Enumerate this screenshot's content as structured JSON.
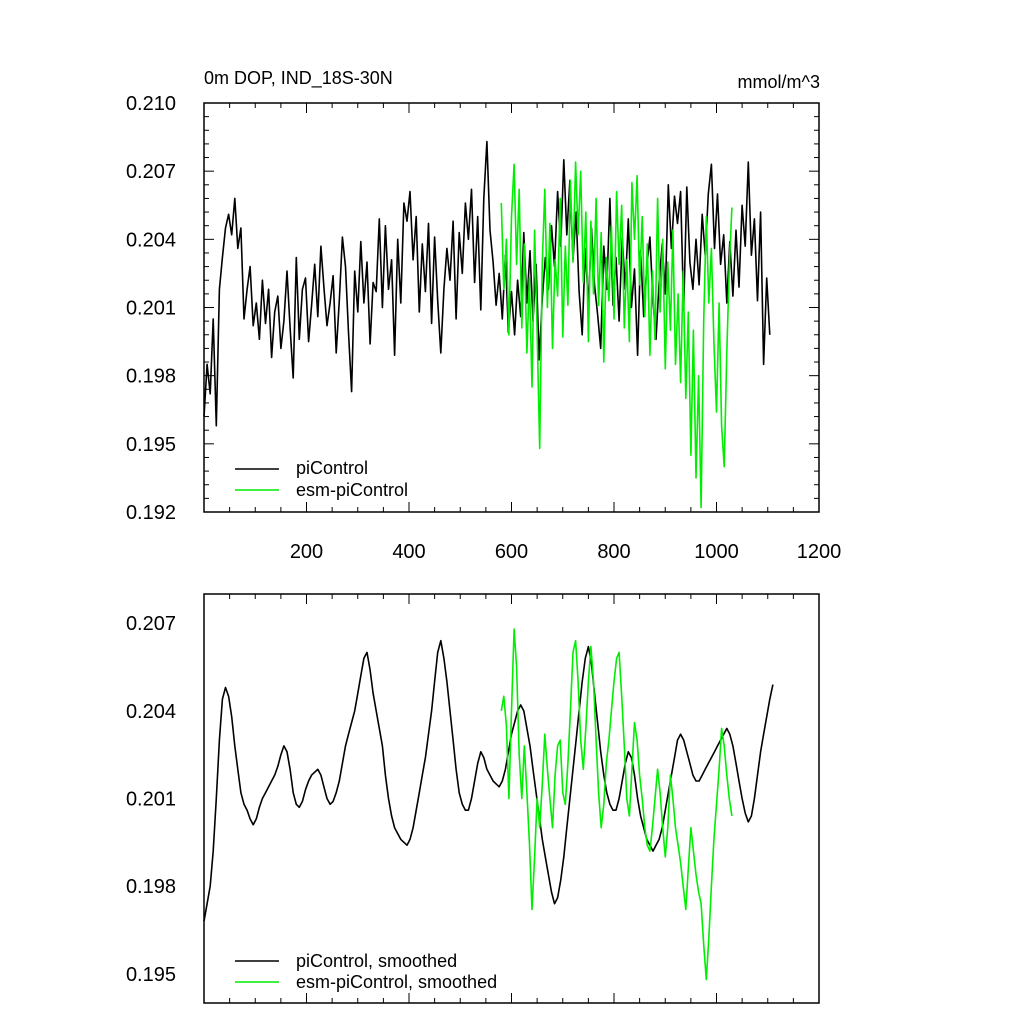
{
  "chart_data": [
    {
      "type": "line",
      "title_left": "0m DOP, IND_18S-30N",
      "title_right": "mmol/m^3",
      "xlim": [
        0,
        1200
      ],
      "ylim": [
        0.192,
        0.21
      ],
      "x_ticks": [
        200,
        400,
        600,
        800,
        1000,
        1200
      ],
      "x_tick_labels": [
        "200",
        "400",
        "600",
        "800",
        "1000",
        "1200"
      ],
      "y_ticks": [
        0.192,
        0.195,
        0.198,
        0.201,
        0.204,
        0.207,
        0.21
      ],
      "y_tick_labels": [
        "0.192",
        "0.195",
        "0.198",
        "0.201",
        "0.204",
        "0.207",
        "0.210"
      ],
      "legend": [
        {
          "label": "piControl",
          "color": "#000000"
        },
        {
          "label": "esm-piControl",
          "color": "#00ee00"
        }
      ],
      "series": [
        {
          "name": "piControl",
          "color": "#000000",
          "x_start": 0,
          "x_step": 6,
          "values": [
            0.1962,
            0.1985,
            0.1972,
            0.2005,
            0.1958,
            0.2018,
            0.2032,
            0.2045,
            0.2051,
            0.2042,
            0.2058,
            0.2036,
            0.2045,
            0.2005,
            0.2018,
            0.2028,
            0.2002,
            0.2012,
            0.1996,
            0.2022,
            0.2003,
            0.2018,
            0.1988,
            0.2008,
            0.2015,
            0.1992,
            0.2004,
            0.2026,
            0.2001,
            0.1979,
            0.2032,
            0.1996,
            0.2018,
            0.2023,
            0.1995,
            0.2011,
            0.2029,
            0.2006,
            0.2037,
            0.2019,
            0.2002,
            0.2012,
            0.2024,
            0.199,
            0.2013,
            0.2041,
            0.2028,
            0.1999,
            0.1973,
            0.2026,
            0.2008,
            0.2039,
            0.2012,
            0.203,
            0.1994,
            0.2021,
            0.2017,
            0.2049,
            0.201,
            0.2046,
            0.2018,
            0.2031,
            0.1989,
            0.204,
            0.2012,
            0.2056,
            0.2048,
            0.2061,
            0.2031,
            0.205,
            0.2008,
            0.2038,
            0.2017,
            0.2047,
            0.2003,
            0.2041,
            0.2013,
            0.199,
            0.2018,
            0.2036,
            0.2022,
            0.2048,
            0.2005,
            0.2043,
            0.2025,
            0.2056,
            0.204,
            0.2062,
            0.2021,
            0.205,
            0.2009,
            0.2058,
            0.2083,
            0.2044,
            0.203,
            0.2011,
            0.2025,
            0.2005,
            0.2033,
            0.1999,
            0.2017,
            0.1998,
            0.2022,
            0.2006,
            0.2043,
            0.2012,
            0.2035,
            0.2004,
            0.2029,
            0.1987,
            0.2014,
            0.2032,
            0.2018,
            0.2046,
            0.2028,
            0.2061,
            0.2037,
            0.2075,
            0.2042,
            0.2066,
            0.2031,
            0.2052,
            0.2017,
            0.1998,
            0.2036,
            0.2011,
            0.2045,
            0.202,
            0.2007,
            0.1992,
            0.2037,
            0.2018,
            0.2058,
            0.2011,
            0.2032,
            0.2004,
            0.2041,
            0.2018,
            0.2049,
            0.201,
            0.2027,
            0.1989,
            0.2035,
            0.2006,
            0.2028,
            0.2041,
            0.2013,
            0.1996,
            0.2021,
            0.2038,
            0.2016,
            0.2064,
            0.2036,
            0.2059,
            0.2047,
            0.2061,
            0.2009,
            0.2063,
            0.203,
            0.2018,
            0.204,
            0.202,
            0.2051,
            0.2033,
            0.206,
            0.2073,
            0.2036,
            0.206,
            0.2029,
            0.2042,
            0.2012,
            0.2039,
            0.2015,
            0.2044,
            0.2019,
            0.2055,
            0.2037,
            0.2074,
            0.2033,
            0.2049,
            0.2013,
            0.2052,
            0.1985,
            0.2023,
            0.1998
          ],
          "smoothed": [
            0.1968,
            0.1974,
            0.198,
            0.1992,
            0.201,
            0.203,
            0.2044,
            0.2048,
            0.2045,
            0.2038,
            0.2028,
            0.202,
            0.2012,
            0.2008,
            0.2006,
            0.2003,
            0.2001,
            0.2003,
            0.2007,
            0.201,
            0.2012,
            0.2014,
            0.2016,
            0.2018,
            0.2021,
            0.2025,
            0.2028,
            0.2026,
            0.202,
            0.2012,
            0.2008,
            0.2007,
            0.2009,
            0.2013,
            0.2016,
            0.2018,
            0.2019,
            0.202,
            0.2018,
            0.2014,
            0.201,
            0.2008,
            0.2009,
            0.2012,
            0.2016,
            0.2022,
            0.2028,
            0.2032,
            0.2036,
            0.204,
            0.2046,
            0.2052,
            0.2058,
            0.206,
            0.2054,
            0.2046,
            0.204,
            0.2034,
            0.2028,
            0.2018,
            0.201,
            0.2004,
            0.2,
            0.1998,
            0.1996,
            0.1995,
            0.1994,
            0.1996,
            0.2,
            0.2006,
            0.2012,
            0.2018,
            0.2024,
            0.2032,
            0.204,
            0.205,
            0.206,
            0.2064,
            0.2058,
            0.205,
            0.204,
            0.203,
            0.202,
            0.2012,
            0.2008,
            0.2006,
            0.2006,
            0.201,
            0.2016,
            0.2022,
            0.2026,
            0.2024,
            0.202,
            0.2018,
            0.2016,
            0.2015,
            0.2014,
            0.2016,
            0.202,
            0.2026,
            0.2032,
            0.2036,
            0.204,
            0.2042,
            0.204,
            0.2034,
            0.2028,
            0.202,
            0.2012,
            0.2004,
            0.1996,
            0.199,
            0.1984,
            0.1978,
            0.1974,
            0.1976,
            0.1982,
            0.199,
            0.2,
            0.201,
            0.202,
            0.203,
            0.204,
            0.205,
            0.2058,
            0.2062,
            0.2056,
            0.2046,
            0.2036,
            0.2026,
            0.2018,
            0.2012,
            0.2008,
            0.2006,
            0.2006,
            0.201,
            0.2016,
            0.2022,
            0.2026,
            0.2024,
            0.2018,
            0.201,
            0.2004,
            0.2,
            0.1996,
            0.1994,
            0.1992,
            0.1994,
            0.1996,
            0.2,
            0.2006,
            0.2012,
            0.2018,
            0.2024,
            0.203,
            0.2032,
            0.203,
            0.2026,
            0.2022,
            0.2018,
            0.2016,
            0.2016,
            0.2018,
            0.202,
            0.2022,
            0.2024,
            0.2026,
            0.2028,
            0.203,
            0.2032,
            0.2034,
            0.2032,
            0.2028,
            0.2022,
            0.2016,
            0.201,
            0.2005,
            0.2002,
            0.2004,
            0.201,
            0.2018,
            0.2026,
            0.2032,
            0.2038,
            0.2044,
            0.2049
          ]
        },
        {
          "name": "esm-piControl",
          "color": "#00ee00",
          "x_start": 580,
          "x_step": 5,
          "values": [
            0.2056,
            0.2018,
            0.204,
            0.1998,
            0.205,
            0.2073,
            0.2029,
            0.2062,
            0.2001,
            0.2038,
            0.199,
            0.2023,
            0.1975,
            0.2044,
            0.2,
            0.1948,
            0.203,
            0.2062,
            0.201,
            0.2047,
            0.1992,
            0.2031,
            0.2015,
            0.2058,
            0.1997,
            0.2037,
            0.2011,
            0.2066,
            0.203,
            0.2074,
            0.2042,
            0.207,
            0.2021,
            0.2052,
            0.1995,
            0.2048,
            0.2016,
            0.2058,
            0.2011,
            0.2043,
            0.1986,
            0.2032,
            0.2013,
            0.2046,
            0.2005,
            0.2061,
            0.2029,
            0.2055,
            0.2001,
            0.2031,
            0.1995,
            0.2065,
            0.204,
            0.2068,
            0.202,
            0.205,
            0.2006,
            0.2038,
            0.1989,
            0.2026,
            0.1996,
            0.2058,
            0.2008,
            0.204,
            0.1983,
            0.203,
            0.2,
            0.2044,
            0.1985,
            0.2016,
            0.1977,
            0.2026,
            0.197,
            0.2008,
            0.1945,
            0.2,
            0.1935,
            0.198,
            0.1922,
            0.2004,
            0.205,
            0.2012,
            0.2036,
            0.1995,
            0.1964,
            0.2012,
            0.1958,
            0.194,
            0.199,
            0.2028,
            0.2054
          ],
          "smoothed": [
            0.204,
            0.2045,
            0.2035,
            0.201,
            0.204,
            0.2068,
            0.2055,
            0.2025,
            0.201,
            0.2028,
            0.2012,
            0.1995,
            0.1972,
            0.199,
            0.201,
            0.2,
            0.2015,
            0.2032,
            0.202,
            0.201,
            0.2,
            0.2018,
            0.2028,
            0.203,
            0.2012,
            0.2008,
            0.2022,
            0.204,
            0.206,
            0.2064,
            0.205,
            0.203,
            0.202,
            0.2034,
            0.205,
            0.2062,
            0.205,
            0.203,
            0.2012,
            0.2,
            0.2008,
            0.2022,
            0.203,
            0.204,
            0.205,
            0.2058,
            0.206,
            0.2045,
            0.2028,
            0.201,
            0.2004,
            0.202,
            0.2036,
            0.203,
            0.2018,
            0.201,
            0.2,
            0.1994,
            0.1992,
            0.2,
            0.201,
            0.202,
            0.2012,
            0.2,
            0.199,
            0.2,
            0.2018,
            0.201,
            0.2,
            0.1994,
            0.1988,
            0.198,
            0.1972,
            0.1986,
            0.2,
            0.1992,
            0.1984,
            0.1978,
            0.1974,
            0.196,
            0.1948,
            0.1962,
            0.198,
            0.1996,
            0.2008,
            0.202,
            0.2034,
            0.2028,
            0.2018,
            0.201,
            0.2004
          ]
        }
      ]
    },
    {
      "type": "line",
      "xlim": [
        0,
        1200
      ],
      "ylim": [
        0.194,
        0.208
      ],
      "y_ticks": [
        0.195,
        0.198,
        0.201,
        0.204,
        0.207
      ],
      "y_tick_labels": [
        "0.195",
        "0.198",
        "0.201",
        "0.204",
        "0.207"
      ],
      "legend": [
        {
          "label": "piControl, smoothed",
          "color": "#000000"
        },
        {
          "label": "esm-piControl, smoothed",
          "color": "#00ee00"
        }
      ]
    }
  ]
}
